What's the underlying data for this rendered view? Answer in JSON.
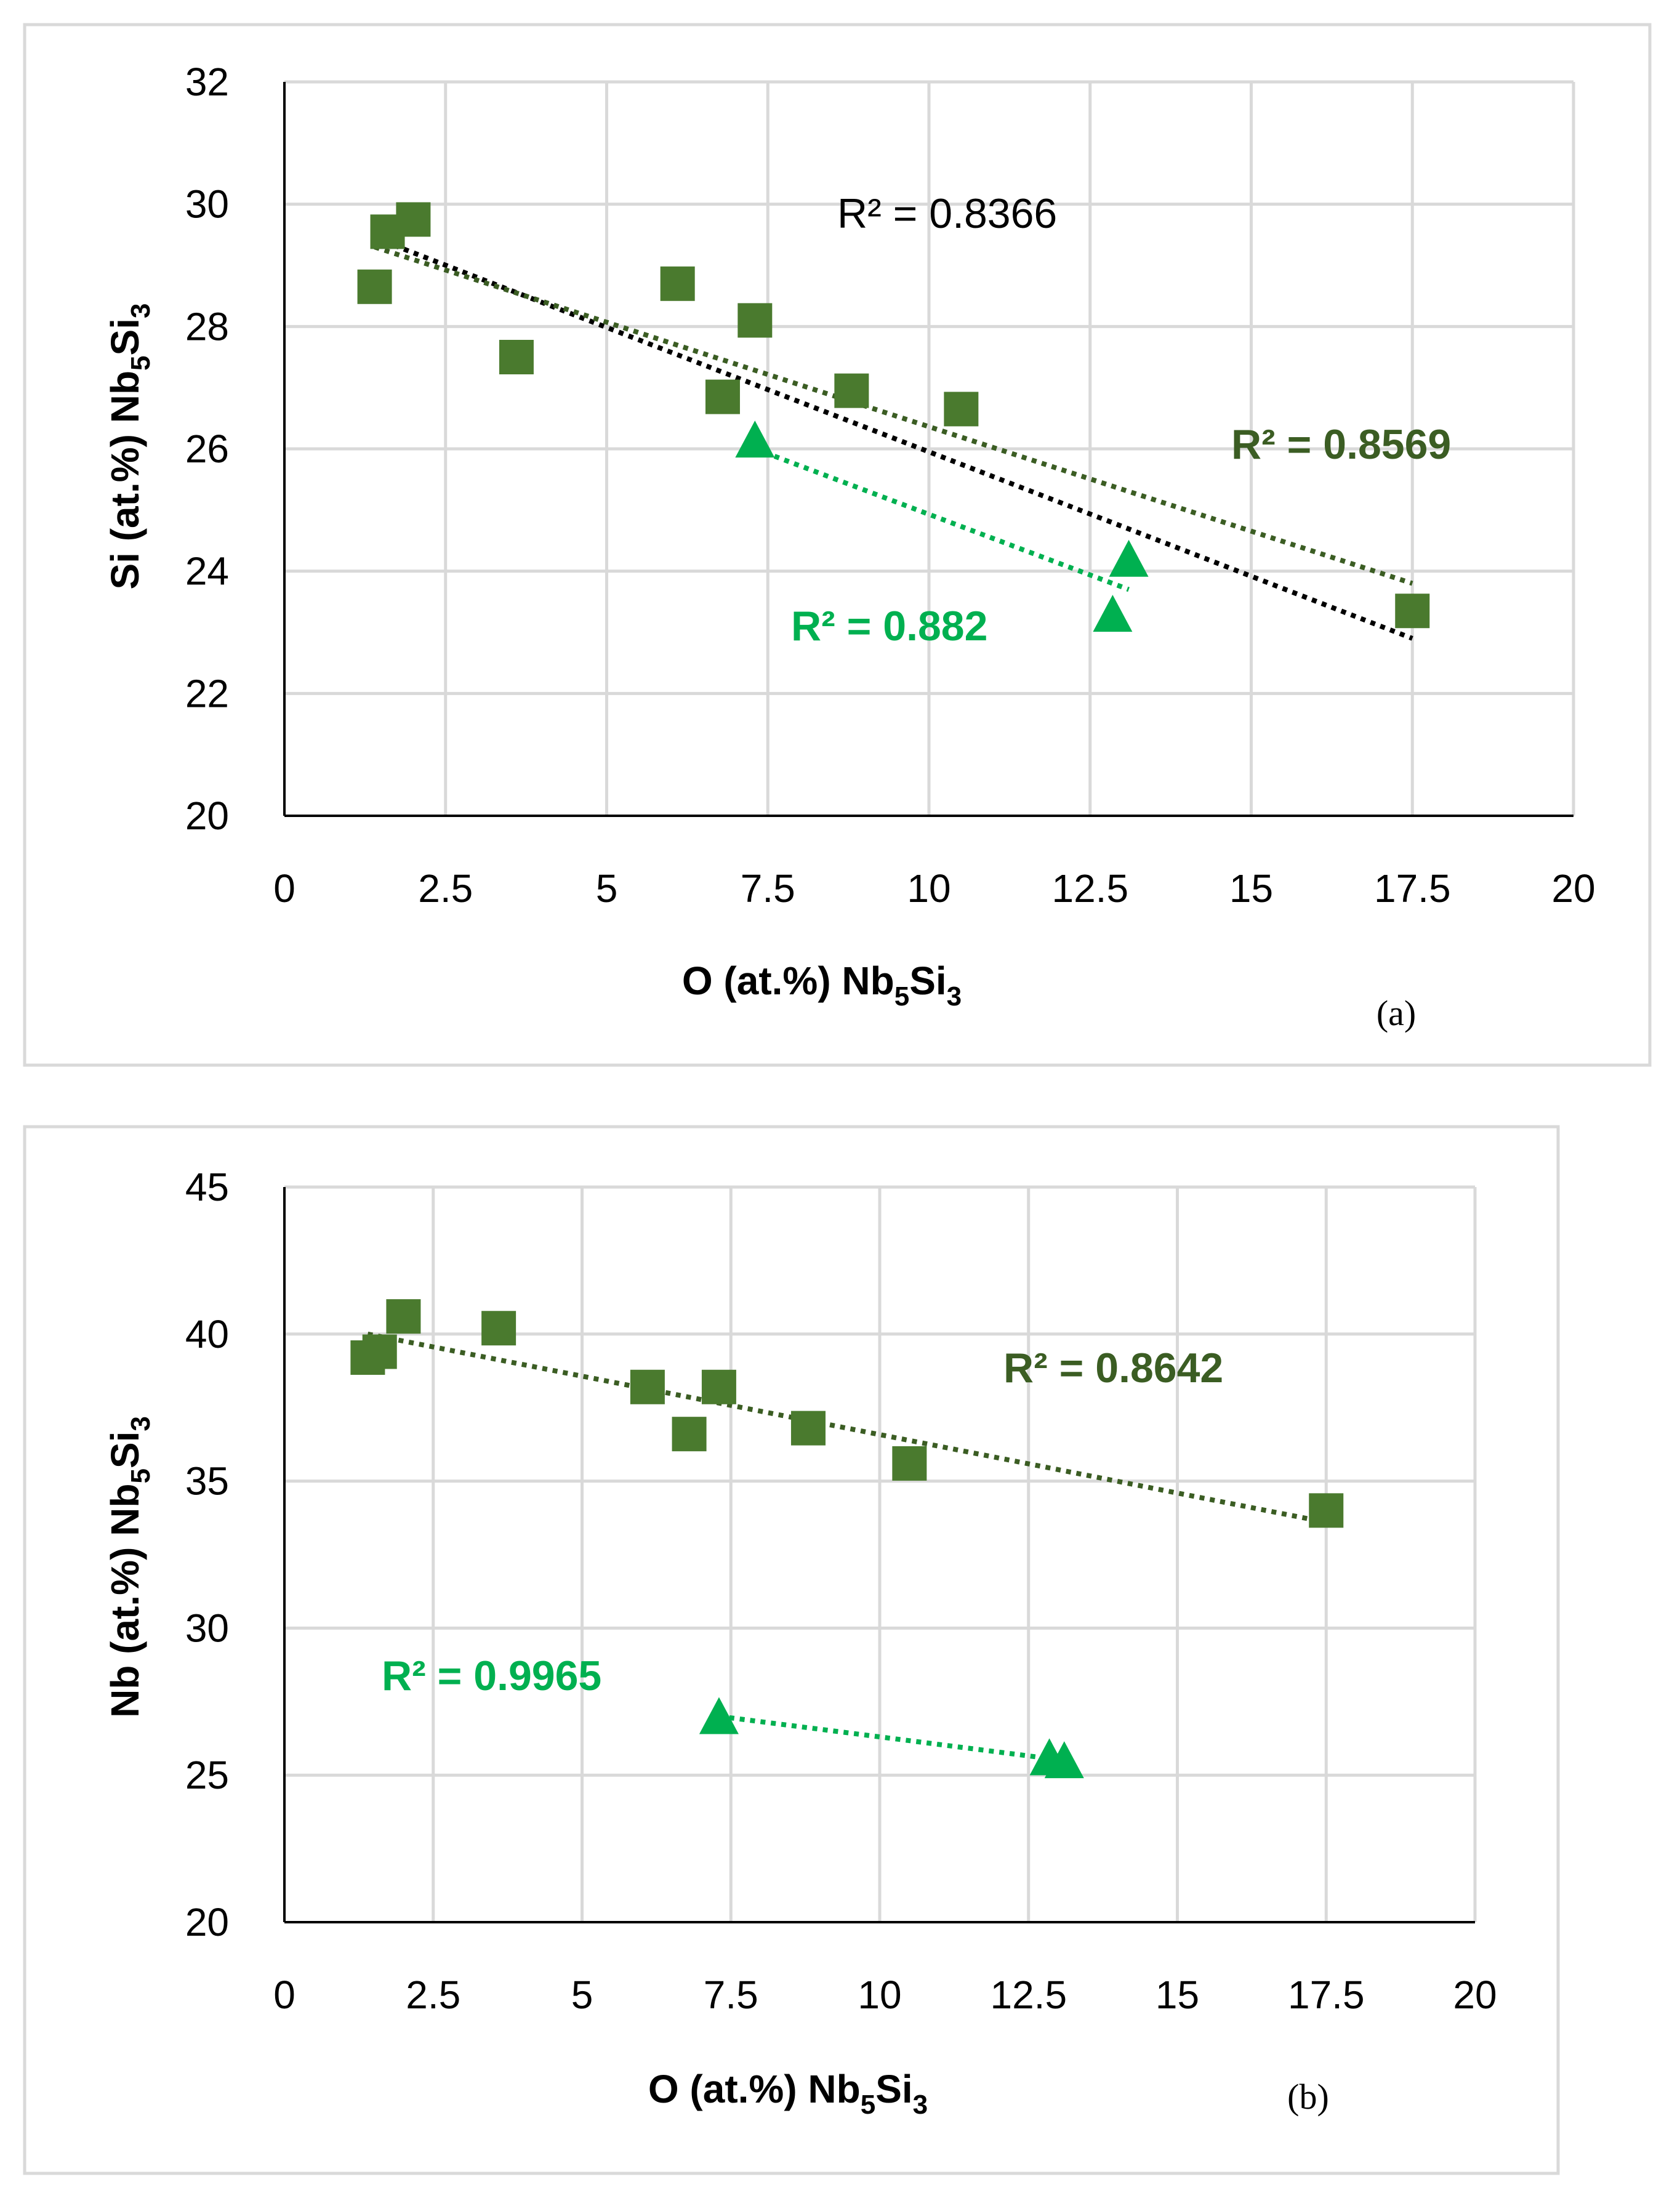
{
  "colors": {
    "dark_green": "#4a7a2e",
    "dark_green_line": "#3b5d23",
    "bright_green": "#00b050",
    "black": "#000000",
    "grid": "#d9d9d9",
    "frame": "#d9d9d9"
  },
  "chart_data": [
    {
      "panel_label": "(a)",
      "type": "scatter",
      "xlabel": {
        "main": "O (at.%) Nb",
        "sub1": "5",
        "mid": "Si",
        "sub2": "3"
      },
      "ylabel": {
        "main": "Si (at.%) Nb",
        "sub1": "5",
        "mid": "Si",
        "sub2": "3"
      },
      "xlim": [
        0,
        20
      ],
      "ylim": [
        20,
        32
      ],
      "xticks": [
        0,
        2.5,
        5,
        7.5,
        10,
        12.5,
        15,
        17.5,
        20
      ],
      "xtick_labels": [
        "0",
        "2.5",
        "5",
        "7.5",
        "10",
        "12.5",
        "15",
        "17.5",
        "20"
      ],
      "yticks": [
        20,
        22,
        24,
        26,
        28,
        30,
        32
      ],
      "ytick_labels": [
        "20",
        "22",
        "24",
        "26",
        "28",
        "30",
        "32"
      ],
      "grid": true,
      "series": [
        {
          "marker": "square",
          "color": "#4a7a2e",
          "points": [
            [
              1.4,
              28.65
            ],
            [
              1.6,
              29.55
            ],
            [
              2.0,
              29.75
            ],
            [
              3.6,
              27.5
            ],
            [
              6.1,
              28.7
            ],
            [
              6.8,
              26.85
            ],
            [
              7.3,
              28.1
            ],
            [
              8.8,
              26.95
            ],
            [
              10.5,
              26.65
            ],
            [
              17.5,
              23.35
            ]
          ]
        },
        {
          "marker": "triangle",
          "color": "#00b050",
          "points": [
            [
              7.3,
              26.1
            ],
            [
              12.85,
              23.25
            ],
            [
              13.1,
              24.15
            ]
          ]
        }
      ],
      "trendlines": [
        {
          "color": "#000000",
          "x": [
            1.4,
            17.5
          ],
          "y": [
            29.45,
            22.9
          ],
          "r2": "R² = 0.8366",
          "bold": false
        },
        {
          "color": "#3b5d23",
          "x": [
            1.4,
            17.5
          ],
          "y": [
            29.3,
            23.8
          ],
          "r2": "R² = 0.8569",
          "bold": true
        },
        {
          "color": "#00b050",
          "x": [
            7.3,
            13.1
          ],
          "y": [
            26.0,
            23.7
          ],
          "r2": "R² = 0.882",
          "bold": true
        }
      ]
    },
    {
      "panel_label": "(b)",
      "type": "scatter",
      "xlabel": {
        "main": "O (at.%) Nb",
        "sub1": "5",
        "mid": "Si",
        "sub2": "3"
      },
      "ylabel": {
        "main": "Nb (at.%) Nb",
        "sub1": "5",
        "mid": "Si",
        "sub2": "3"
      },
      "xlim": [
        0,
        20
      ],
      "ylim": [
        20,
        45
      ],
      "xticks": [
        0,
        2.5,
        5,
        7.5,
        10,
        12.5,
        15,
        17.5,
        20
      ],
      "xtick_labels": [
        "0",
        "2.5",
        "5",
        "7.5",
        "10",
        "12.5",
        "15",
        "17.5",
        "20"
      ],
      "yticks": [
        20,
        25,
        30,
        35,
        40,
        45
      ],
      "ytick_labels": [
        "20",
        "25",
        "30",
        "35",
        "40",
        "45"
      ],
      "grid": true,
      "series": [
        {
          "marker": "square",
          "color": "#4a7a2e",
          "points": [
            [
              1.4,
              39.2
            ],
            [
              1.6,
              39.4
            ],
            [
              2.0,
              40.6
            ],
            [
              3.6,
              40.2
            ],
            [
              6.1,
              38.2
            ],
            [
              6.8,
              36.6
            ],
            [
              7.3,
              38.2
            ],
            [
              8.8,
              36.8
            ],
            [
              10.5,
              35.6
            ],
            [
              17.5,
              34.0
            ]
          ]
        },
        {
          "marker": "triangle",
          "color": "#00b050",
          "points": [
            [
              7.3,
              26.9
            ],
            [
              12.85,
              25.5
            ],
            [
              13.1,
              25.4
            ]
          ]
        }
      ],
      "trendlines": [
        {
          "color": "#3b5d23",
          "x": [
            1.4,
            17.5
          ],
          "y": [
            40.0,
            33.6
          ],
          "r2": "R² = 0.8642",
          "bold": true
        },
        {
          "color": "#00b050",
          "x": [
            7.3,
            13.1
          ],
          "y": [
            27.0,
            25.5
          ],
          "r2": "R² = 0.9965",
          "bold": true
        }
      ]
    }
  ]
}
